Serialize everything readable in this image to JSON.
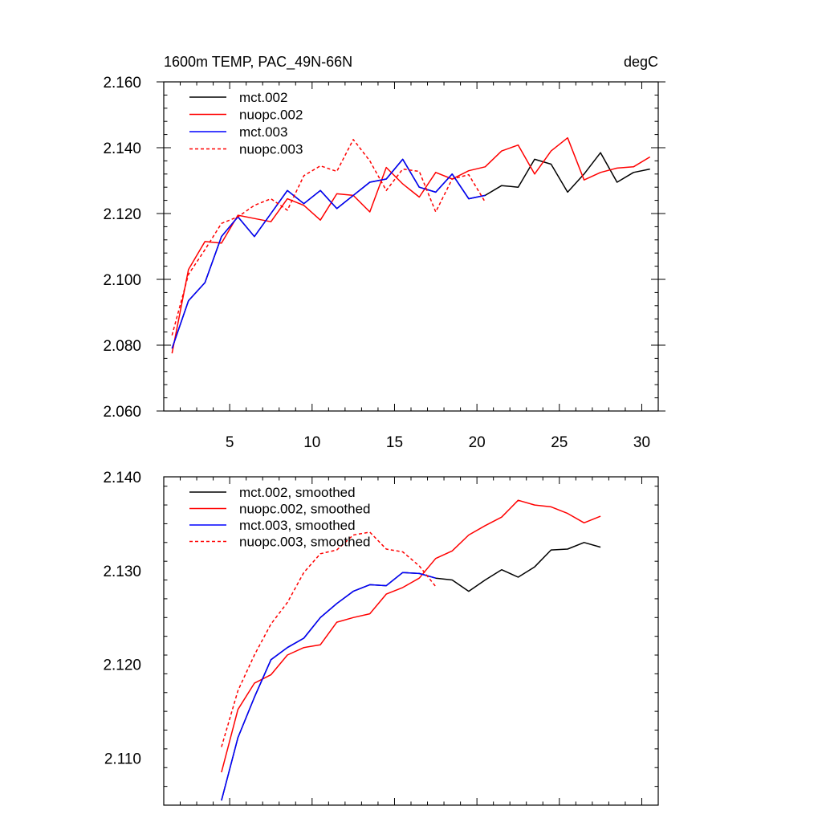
{
  "chart_data": [
    {
      "type": "line",
      "title_left": "1600m TEMP, PAC_49N-66N",
      "title_right": "degC",
      "xlim": [
        1,
        31
      ],
      "ylim": [
        2.06,
        2.16
      ],
      "xticks": [
        5,
        10,
        15,
        20,
        25,
        30
      ],
      "xtick_labels": [
        "5",
        "10",
        "15",
        "20",
        "25",
        "30"
      ],
      "yticks": [
        2.06,
        2.08,
        2.1,
        2.12,
        2.14,
        2.16
      ],
      "ytick_labels": [
        "2.060",
        "2.080",
        "2.100",
        "2.120",
        "2.140",
        "2.160"
      ],
      "legend_position": "top-left",
      "series": [
        {
          "name": "mct.002",
          "color": "#000000",
          "dash": "solid",
          "x": [
            1.5,
            2.5,
            3.5,
            4.5,
            5.5,
            6.5,
            7.5,
            8.5,
            9.5,
            10.5,
            11.5,
            12.5,
            13.5,
            14.5,
            15.5,
            16.5,
            17.5,
            18.5,
            19.5,
            20.5,
            21.5,
            22.5,
            23.5,
            24.5,
            25.5,
            26.5,
            27.5,
            28.5,
            29.5,
            30.5
          ],
          "y": [
            2.079,
            2.0935,
            2.099,
            2.113,
            2.119,
            2.113,
            2.12,
            2.127,
            2.123,
            2.127,
            2.1215,
            2.1255,
            2.1295,
            2.1305,
            2.1365,
            2.128,
            2.1265,
            2.132,
            2.1245,
            2.1255,
            2.1285,
            2.128,
            2.1365,
            2.135,
            2.1265,
            2.132,
            2.1385,
            2.1295,
            2.1325,
            2.1335
          ]
        },
        {
          "name": "nuopc.002",
          "color": "#ff0000",
          "dash": "solid",
          "x": [
            1.5,
            2.5,
            3.5,
            4.5,
            5.5,
            6.5,
            7.5,
            8.5,
            9.5,
            10.5,
            11.5,
            12.5,
            13.5,
            14.5,
            15.5,
            16.5,
            17.5,
            18.5,
            19.5,
            20.5,
            21.5,
            22.5,
            23.5,
            24.5,
            25.5,
            26.5,
            27.5,
            28.5,
            29.5,
            30.5
          ],
          "y": [
            2.0775,
            2.103,
            2.1115,
            2.111,
            2.1195,
            2.1185,
            2.1175,
            2.1245,
            2.1225,
            2.118,
            2.126,
            2.1255,
            2.1205,
            2.134,
            2.129,
            2.125,
            2.1325,
            2.1305,
            2.133,
            2.1342,
            2.139,
            2.1408,
            2.132,
            2.139,
            2.143,
            2.1302,
            2.1325,
            2.1338,
            2.1342,
            2.1372
          ]
        },
        {
          "name": "mct.003",
          "color": "#0000ff",
          "dash": "solid",
          "x": [
            1.5,
            2.5,
            3.5,
            4.5,
            5.5,
            6.5,
            7.5,
            8.5,
            9.5,
            10.5,
            11.5,
            12.5,
            13.5,
            14.5,
            15.5,
            16.5,
            17.5,
            18.5,
            19.5,
            20.5
          ],
          "y": [
            2.079,
            2.0935,
            2.099,
            2.113,
            2.119,
            2.113,
            2.12,
            2.127,
            2.123,
            2.127,
            2.1215,
            2.1255,
            2.1295,
            2.1305,
            2.1365,
            2.128,
            2.1265,
            2.132,
            2.1245,
            2.1255
          ]
        },
        {
          "name": "nuopc.003",
          "color": "#ff0000",
          "dash": "dashed",
          "x": [
            1.5,
            2.5,
            3.5,
            4.5,
            5.5,
            6.5,
            7.5,
            8.5,
            9.5,
            10.5,
            11.5,
            12.5,
            13.5,
            14.5,
            15.5,
            16.5,
            17.5,
            18.5,
            19.5,
            20.5
          ],
          "y": [
            2.083,
            2.1015,
            2.109,
            2.117,
            2.119,
            2.1225,
            2.1245,
            2.121,
            2.1315,
            2.1345,
            2.1328,
            2.1425,
            2.136,
            2.127,
            2.1335,
            2.1328,
            2.1205,
            2.1305,
            2.1318,
            2.1235
          ]
        }
      ]
    },
    {
      "type": "line",
      "title_left": "",
      "title_right": "",
      "xlim": [
        1,
        31
      ],
      "ylim": [
        2.105,
        2.14
      ],
      "xticks": [
        5,
        10,
        15,
        20,
        25,
        30
      ],
      "xtick_labels": [],
      "yticks": [
        2.11,
        2.12,
        2.13,
        2.14
      ],
      "ytick_labels": [
        "2.110",
        "2.120",
        "2.130",
        "2.140"
      ],
      "legend_position": "top-left",
      "series": [
        {
          "name": "mct.002, smoothed",
          "color": "#000000",
          "dash": "solid",
          "x": [
            4.5,
            5.5,
            6.5,
            7.5,
            8.5,
            9.5,
            10.5,
            11.5,
            12.5,
            13.5,
            14.5,
            15.5,
            16.5,
            17.5,
            18.5,
            19.5,
            20.5,
            21.5,
            22.5,
            23.5,
            24.5,
            25.5,
            26.5,
            27.5
          ],
          "y": [
            2.1055,
            2.1122,
            2.1165,
            2.1205,
            2.1218,
            2.1228,
            2.125,
            2.1265,
            2.1278,
            2.1285,
            2.1284,
            2.1298,
            2.1297,
            2.1292,
            2.129,
            2.1278,
            2.129,
            2.1301,
            2.1293,
            2.1304,
            2.1322,
            2.1323,
            2.133,
            2.1325
          ]
        },
        {
          "name": "nuopc.002, smoothed",
          "color": "#ff0000",
          "dash": "solid",
          "x": [
            4.5,
            5.5,
            6.5,
            7.5,
            8.5,
            9.5,
            10.5,
            11.5,
            12.5,
            13.5,
            14.5,
            15.5,
            16.5,
            17.5,
            18.5,
            19.5,
            20.5,
            21.5,
            22.5,
            23.5,
            24.5,
            25.5,
            26.5,
            27.5
          ],
          "y": [
            2.1085,
            2.1152,
            2.118,
            2.1189,
            2.121,
            2.1218,
            2.1221,
            2.1245,
            2.125,
            2.1254,
            2.1275,
            2.1282,
            2.1292,
            2.1313,
            2.1321,
            2.1338,
            2.1348,
            2.1357,
            2.1375,
            2.137,
            2.1368,
            2.1361,
            2.1351,
            2.1358
          ]
        },
        {
          "name": "mct.003, smoothed",
          "color": "#0000ff",
          "dash": "solid",
          "x": [
            4.5,
            5.5,
            6.5,
            7.5,
            8.5,
            9.5,
            10.5,
            11.5,
            12.5,
            13.5,
            14.5,
            15.5,
            16.5,
            17.5
          ],
          "y": [
            2.1055,
            2.1122,
            2.1165,
            2.1205,
            2.1218,
            2.1228,
            2.125,
            2.1265,
            2.1278,
            2.1285,
            2.1284,
            2.1298,
            2.1297,
            2.1292
          ]
        },
        {
          "name": "nuopc.003, smoothed",
          "color": "#ff0000",
          "dash": "dashed",
          "x": [
            4.5,
            5.5,
            6.5,
            7.5,
            8.5,
            9.5,
            10.5,
            11.5,
            12.5,
            13.5,
            14.5,
            15.5,
            16.5,
            17.5
          ],
          "y": [
            2.1112,
            2.1172,
            2.121,
            2.1243,
            2.1266,
            2.1298,
            2.1318,
            2.1322,
            2.1338,
            2.1341,
            2.1323,
            2.132,
            2.1305,
            2.1283
          ]
        }
      ]
    }
  ]
}
